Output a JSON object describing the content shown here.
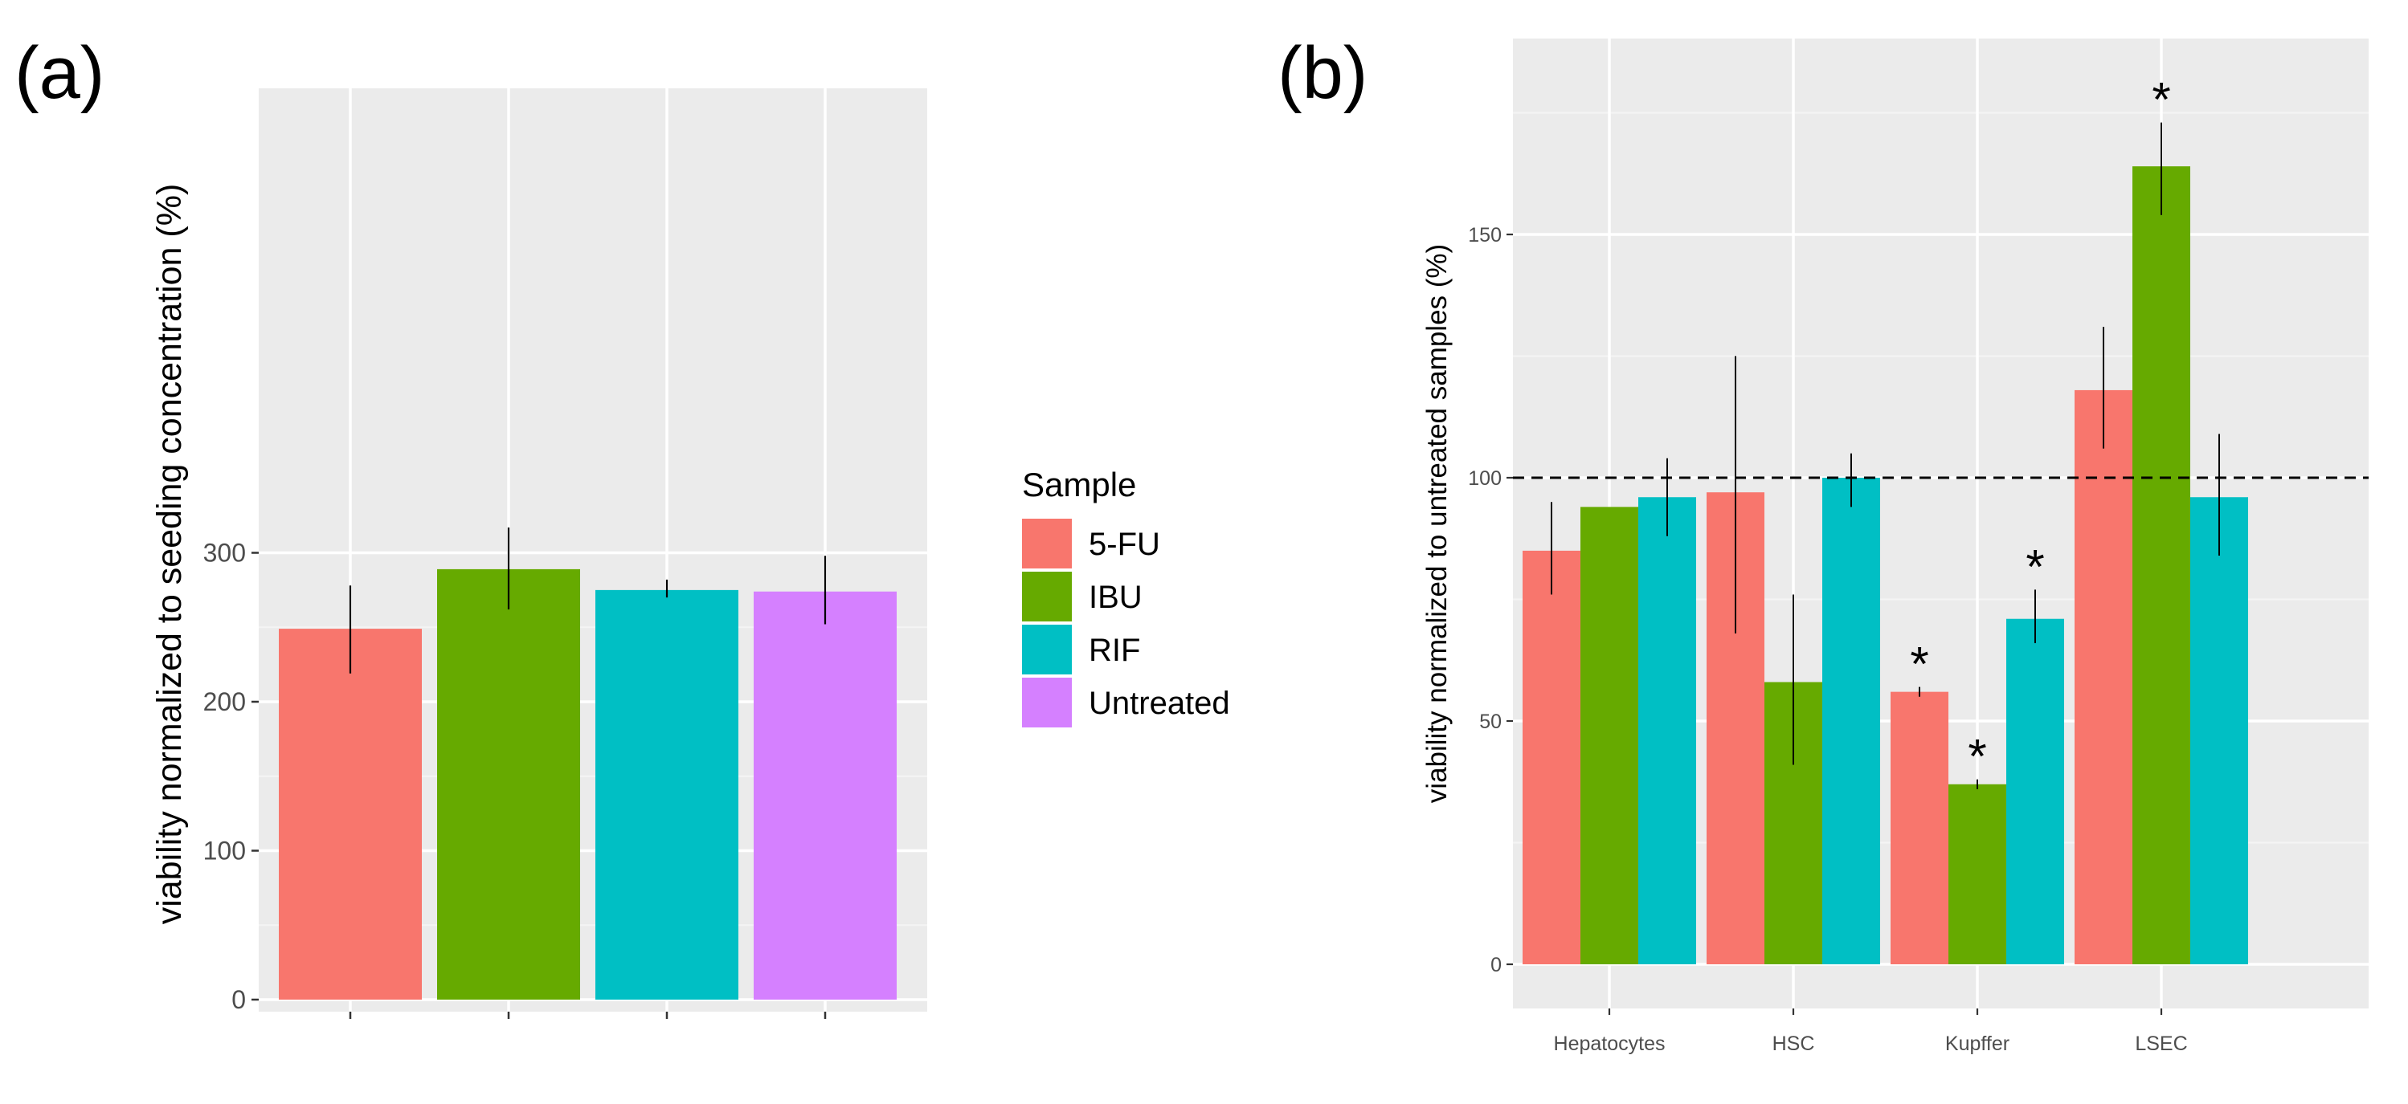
{
  "chart_data": [
    {
      "type": "bar",
      "panel_label": "(a)",
      "categories": [
        "5-FU",
        "IBU",
        "RIF",
        "Untreated"
      ],
      "values": [
        249,
        289,
        275,
        274
      ],
      "error_low": [
        219,
        262,
        270,
        252
      ],
      "error_high": [
        278,
        317,
        282,
        298
      ],
      "colors": [
        "#F8766D",
        "#66AA00",
        "#00BFC4",
        "#D580FF"
      ],
      "xlabel": "",
      "ylabel": "viability normalized to seeding concentration (%)",
      "ylim": [
        0,
        320
      ],
      "yticks": [
        "0",
        "100",
        "200",
        "300"
      ],
      "grid": true
    },
    {
      "type": "bar",
      "panel_label": "(b)",
      "categories": [
        "Hepatocytes",
        "HSC",
        "Kupffer",
        "LSEC"
      ],
      "series": [
        {
          "name": "5-FU",
          "values": [
            85,
            97,
            56,
            118
          ],
          "error_low": [
            76,
            68,
            55,
            106
          ],
          "error_high": [
            95,
            125,
            57,
            131
          ]
        },
        {
          "name": "IBU",
          "values": [
            94,
            58,
            37,
            164
          ],
          "error_low": [
            94,
            41,
            36,
            154
          ],
          "error_high": [
            94,
            76,
            38,
            173
          ]
        },
        {
          "name": "RIF",
          "values": [
            96,
            100,
            71,
            96
          ],
          "error_low": [
            88,
            94,
            66,
            84
          ],
          "error_high": [
            104,
            105,
            77,
            109
          ]
        }
      ],
      "significance_markers": [
        {
          "category": "Kupffer",
          "series": "5-FU",
          "text": "*"
        },
        {
          "category": "Kupffer",
          "series": "IBU",
          "text": "*"
        },
        {
          "category": "Kupffer",
          "series": "RIF",
          "text": "*"
        },
        {
          "category": "LSEC",
          "series": "IBU",
          "text": "*"
        }
      ],
      "reference_line": 100,
      "xlabel": "",
      "ylabel": "viability normalized to untreated samples (%)",
      "ylim": [
        -7,
        180
      ],
      "yticks": [
        "0",
        "50",
        "100",
        "150"
      ],
      "grid": true
    }
  ],
  "legend": {
    "title": "Sample",
    "entries": [
      {
        "label": "5-FU",
        "color": "#F8766D"
      },
      {
        "label": "IBU",
        "color": "#66AA00"
      },
      {
        "label": "RIF",
        "color": "#00BFC4"
      },
      {
        "label": "Untreated",
        "color": "#D580FF"
      }
    ]
  }
}
